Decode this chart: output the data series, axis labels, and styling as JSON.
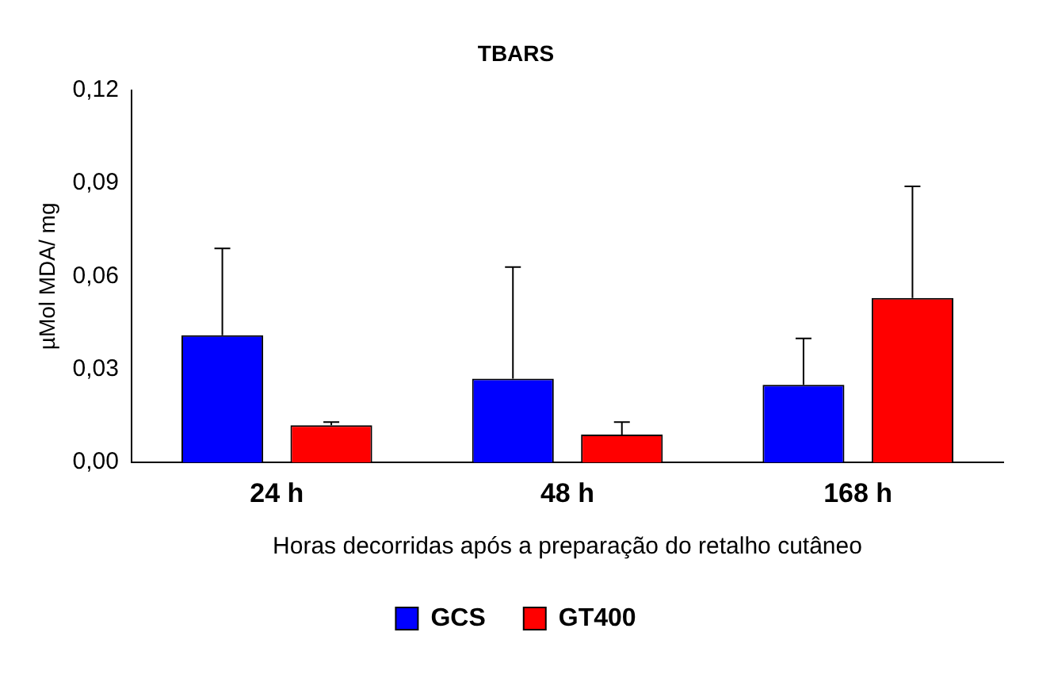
{
  "chart_data": {
    "type": "bar",
    "title": "TBARS",
    "xlabel": "Horas decorridas após a preparação do retalho cutâneo",
    "ylabel": "µMol MDA/ mg",
    "categories": [
      "24 h",
      "48 h",
      "168 h"
    ],
    "series": [
      {
        "name": "GCS",
        "color": "#0000ff",
        "values": [
          0.041,
          0.027,
          0.025
        ],
        "errors": [
          [
            0.041,
            0.069
          ],
          [
            0.027,
            0.063
          ],
          [
            0.025,
            0.04
          ]
        ]
      },
      {
        "name": "GT400",
        "color": "#ff0000",
        "values": [
          0.012,
          0.009,
          0.053
        ],
        "errors": [
          [
            0.012,
            0.013
          ],
          [
            0.009,
            0.013
          ],
          [
            0.053,
            0.089
          ]
        ]
      }
    ],
    "ylim": [
      0,
      0.12
    ],
    "yticks": [
      {
        "value": 0,
        "label": "0,00"
      },
      {
        "value": 0.03,
        "label": "0,03"
      },
      {
        "value": 0.06,
        "label": "0,06"
      },
      {
        "value": 0.09,
        "label": "0,09"
      },
      {
        "value": 0.12,
        "label": "0,12"
      }
    ],
    "grid": false,
    "legend": "bottom"
  }
}
